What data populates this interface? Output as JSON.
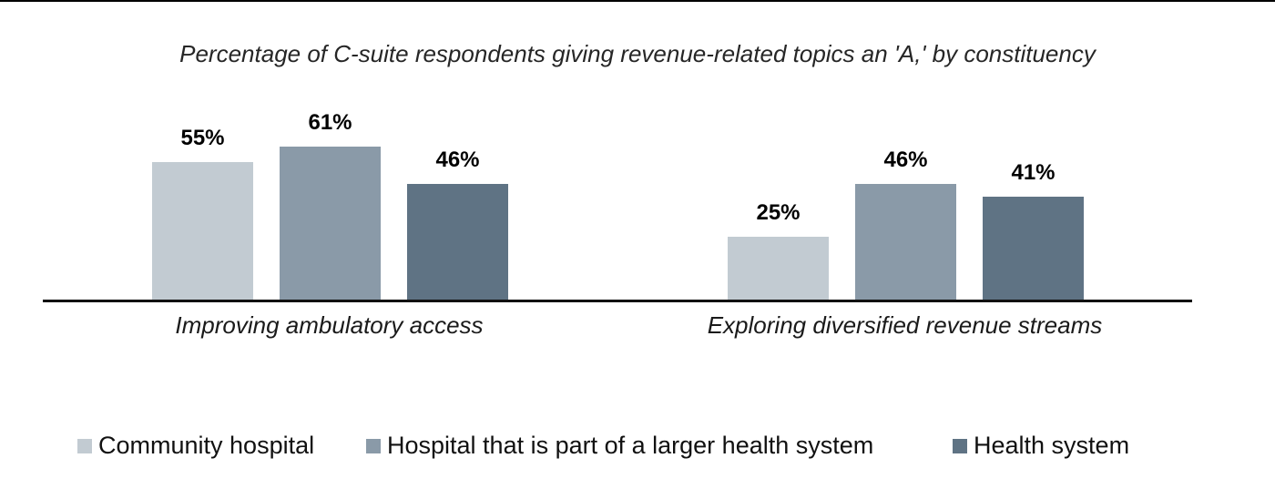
{
  "page": {
    "background": "#ffffff"
  },
  "chart_data": {
    "type": "bar",
    "title": "Percentage of C-suite respondents giving revenue-related topics an 'A,' by constituency",
    "categories": [
      "Improving ambulatory access",
      "Exploring diversified revenue streams"
    ],
    "series": [
      {
        "name": "Community hospital",
        "color": "#c2cbd2",
        "values": [
          55,
          25
        ]
      },
      {
        "name": "Hospital that is part of a larger health system",
        "color": "#8a9aa8",
        "values": [
          61,
          46
        ]
      },
      {
        "name": "Health system",
        "color": "#5f7384",
        "values": [
          46,
          41
        ]
      }
    ],
    "data_labels": [
      [
        "55%",
        "61%",
        "46%"
      ],
      [
        "25%",
        "46%",
        "41%"
      ]
    ],
    "unit": "%",
    "ylim": [
      0,
      100
    ],
    "grid": false,
    "y_axis_visible": false,
    "legend_position": "bottom",
    "title_style": "italic",
    "category_label_style": "italic",
    "colors": {
      "axis": "#111111",
      "title_text": "#262626",
      "category_text": "#1a1a1a",
      "value_label_text": "#000000",
      "legend_text": "#111111"
    }
  }
}
